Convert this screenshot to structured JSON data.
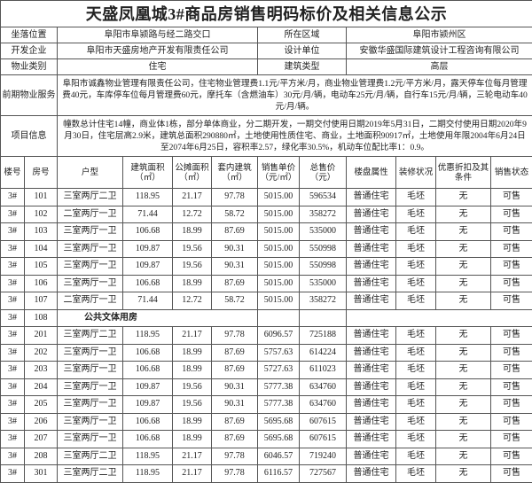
{
  "title": "天盛凤凰城3#商品房销售明码标价及相关信息公示",
  "info": [
    {
      "label1": "坐落位置",
      "value1": "阜阳市阜颍路与经二路交口",
      "label2": "所在区域",
      "value2": "阜阳市颍州区"
    },
    {
      "label1": "开发企业",
      "value1": "阜阳市天盛房地产开发有限责任公司",
      "label2": "设计单位",
      "value2": "安徽华盛国际建筑设计工程咨询有限公司"
    },
    {
      "label1": "物业类别",
      "value1": "住宅",
      "label2": "建筑类型",
      "value2": "高层"
    }
  ],
  "property_service": {
    "label": "前期物业服务",
    "text": "阜阳市诚鑫物业管理有限责任公司，住宅物业管理费1.1元/平方米/月，商业物业管理费1.2元/平方米/月，露天停车位每月管理费40元，车库停车位每月管理费60元，摩托车（含燃油车）30元/月/辆，电动车25元/月/辆，自行车15元/月/辆，三轮电动车40元/月/辆。"
  },
  "project_info": {
    "label": "项目信息",
    "text": "幢数总计住宅14幢，商业体1栋，部分单体商业，分二期开发，一期交付使用日期2019年5月31日，二期交付使用日期2020年9月30日，住宅层高2.9米，建筑总面积290880㎡，土地使用性质住宅、商业，土地面积90917㎡，土地使用年限2004年6月24日至2074年6月25日，容积率2.57，绿化率30.5%，机动车位配比率1：0.9。"
  },
  "columns": [
    "楼号",
    "房号",
    "户型",
    "建筑面积（㎡）",
    "公摊面积（㎡）",
    "套内建筑（㎡）",
    "销售单价（元/㎡）",
    "总售价（元）",
    "楼盘属性",
    "装修状况",
    "优惠折扣及其条件",
    "销售状态"
  ],
  "rows": [
    [
      "3#",
      "101",
      "三室两厅二卫",
      "118.95",
      "21.17",
      "97.78",
      "5015.00",
      "596534",
      "普通住宅",
      "毛坯",
      "无",
      "可售"
    ],
    [
      "3#",
      "102",
      "二室两厅一卫",
      "71.44",
      "12.72",
      "58.72",
      "5015.00",
      "358272",
      "普通住宅",
      "毛坯",
      "无",
      "可售"
    ],
    [
      "3#",
      "103",
      "三室两厅一卫",
      "106.68",
      "18.99",
      "87.69",
      "5015.00",
      "535000",
      "普通住宅",
      "毛坯",
      "无",
      "可售"
    ],
    [
      "3#",
      "104",
      "三室两厅一卫",
      "109.87",
      "19.56",
      "90.31",
      "5015.00",
      "550998",
      "普通住宅",
      "毛坯",
      "无",
      "可售"
    ],
    [
      "3#",
      "105",
      "三室两厅一卫",
      "109.87",
      "19.56",
      "90.31",
      "5015.00",
      "550998",
      "普通住宅",
      "毛坯",
      "无",
      "可售"
    ],
    [
      "3#",
      "106",
      "三室两厅一卫",
      "106.68",
      "18.99",
      "87.69",
      "5015.00",
      "535000",
      "普通住宅",
      "毛坯",
      "无",
      "可售"
    ],
    [
      "3#",
      "107",
      "二室两厅一卫",
      "71.44",
      "12.72",
      "58.72",
      "5015.00",
      "358272",
      "普通住宅",
      "毛坯",
      "无",
      "可售"
    ],
    [
      "3#",
      "108",
      "公共文体用房"
    ],
    [
      "3#",
      "201",
      "三室两厅二卫",
      "118.95",
      "21.17",
      "97.78",
      "6096.57",
      "725188",
      "普通住宅",
      "毛坯",
      "无",
      "可售"
    ],
    [
      "3#",
      "202",
      "三室两厅一卫",
      "106.68",
      "18.99",
      "87.69",
      "5757.63",
      "614224",
      "普通住宅",
      "毛坯",
      "无",
      "可售"
    ],
    [
      "3#",
      "203",
      "三室两厅一卫",
      "106.68",
      "18.99",
      "87.69",
      "5727.63",
      "611023",
      "普通住宅",
      "毛坯",
      "无",
      "可售"
    ],
    [
      "3#",
      "204",
      "三室两厅一卫",
      "109.87",
      "19.56",
      "90.31",
      "5777.38",
      "634760",
      "普通住宅",
      "毛坯",
      "无",
      "可售"
    ],
    [
      "3#",
      "205",
      "三室两厅一卫",
      "109.87",
      "19.56",
      "90.31",
      "5777.38",
      "634760",
      "普通住宅",
      "毛坯",
      "无",
      "可售"
    ],
    [
      "3#",
      "206",
      "三室两厅一卫",
      "106.68",
      "18.99",
      "87.69",
      "5695.68",
      "607615",
      "普通住宅",
      "毛坯",
      "无",
      "可售"
    ],
    [
      "3#",
      "207",
      "三室两厅一卫",
      "106.68",
      "18.99",
      "87.69",
      "5695.68",
      "607615",
      "普通住宅",
      "毛坯",
      "无",
      "可售"
    ],
    [
      "3#",
      "208",
      "三室两厅二卫",
      "118.95",
      "21.17",
      "97.78",
      "6046.57",
      "719240",
      "普通住宅",
      "毛坯",
      "无",
      "可售"
    ],
    [
      "3#",
      "301",
      "三室两厅二卫",
      "118.95",
      "21.17",
      "97.78",
      "6116.57",
      "727567",
      "普通住宅",
      "毛坯",
      "无",
      "可售"
    ]
  ]
}
